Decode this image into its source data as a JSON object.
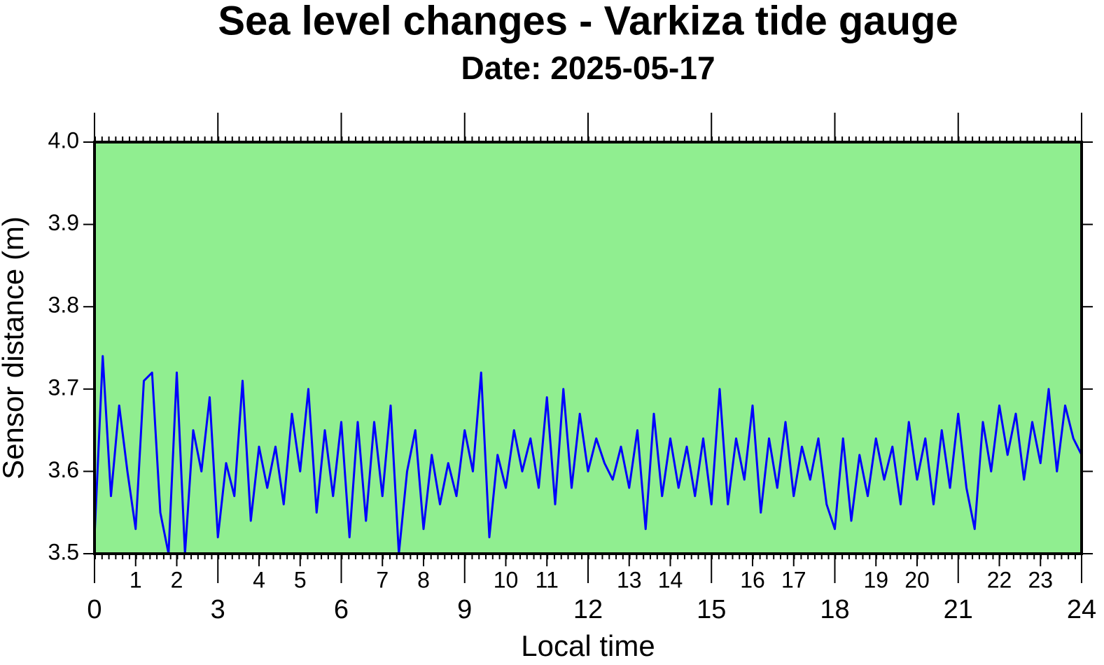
{
  "chart_data": {
    "type": "line",
    "title": "Sea level changes - Varkiza tide gauge",
    "subtitle": "Date: 2025-05-17",
    "x_label": "Local time",
    "y_label": "Sensor distance (m)",
    "xlim": [
      0,
      24
    ],
    "xticks": [
      0,
      3,
      6,
      9,
      12,
      15,
      18,
      21,
      24
    ],
    "xticks_secondary": [
      1,
      2,
      4,
      5,
      7,
      8,
      10,
      11,
      13,
      14,
      16,
      17,
      19,
      20,
      22,
      23
    ],
    "ylim": [
      3.5,
      4.0
    ],
    "yticks": [
      3.5,
      3.6,
      3.7,
      3.8,
      3.9,
      {
        "value": 4.0,
        "label": "4.0"
      }
    ],
    "background": "#90ee90",
    "x": [
      0,
      0.2,
      0.4,
      0.6,
      0.8,
      1,
      1.2,
      1.4,
      1.6,
      1.8,
      2,
      2.2,
      2.4,
      2.6,
      2.8,
      3,
      3.2,
      3.4,
      3.6,
      3.8,
      4,
      4.2,
      4.4,
      4.6,
      4.8,
      5,
      5.2,
      5.4,
      5.6,
      5.8,
      6,
      6.2,
      6.4,
      6.6,
      6.8,
      7,
      7.2,
      7.4,
      7.6,
      7.8,
      8,
      8.2,
      8.4,
      8.6,
      8.8,
      9,
      9.2,
      9.4,
      9.6,
      9.8,
      10,
      10.2,
      10.4,
      10.6,
      10.8,
      11,
      11.2,
      11.4,
      11.6,
      11.8,
      12,
      12.2,
      12.4,
      12.6,
      12.8,
      13,
      13.2,
      13.4,
      13.6,
      13.8,
      14,
      14.2,
      14.4,
      14.6,
      14.8,
      15,
      15.2,
      15.4,
      15.6,
      15.8,
      16,
      16.2,
      16.4,
      16.6,
      16.8,
      17,
      17.2,
      17.4,
      17.6,
      17.8,
      18,
      18.2,
      18.4,
      18.6,
      18.8,
      19,
      19.2,
      19.4,
      19.6,
      19.8,
      20,
      20.2,
      20.4,
      20.6,
      20.8,
      21,
      21.2,
      21.4,
      21.6,
      21.8,
      22,
      22.2,
      22.4,
      22.6,
      22.8,
      23,
      23.2,
      23.4,
      23.6,
      23.8,
      24
    ],
    "series": [
      {
        "color": "#0000ff",
        "values": [
          3.52,
          3.74,
          3.57,
          3.68,
          3.6,
          3.53,
          3.71,
          3.72,
          3.55,
          3.5,
          3.72,
          3.5,
          3.65,
          3.6,
          3.69,
          3.52,
          3.61,
          3.57,
          3.71,
          3.54,
          3.63,
          3.58,
          3.63,
          3.56,
          3.67,
          3.6,
          3.7,
          3.55,
          3.65,
          3.57,
          3.66,
          3.52,
          3.66,
          3.54,
          3.66,
          3.57,
          3.68,
          3.5,
          3.6,
          3.65,
          3.53,
          3.62,
          3.56,
          3.61,
          3.57,
          3.65,
          3.6,
          3.72,
          3.52,
          3.62,
          3.58,
          3.65,
          3.6,
          3.64,
          3.58,
          3.69,
          3.56,
          3.7,
          3.58,
          3.67,
          3.6,
          3.64,
          3.61,
          3.59,
          3.63,
          3.58,
          3.65,
          3.53,
          3.67,
          3.57,
          3.64,
          3.58,
          3.63,
          3.57,
          3.64,
          3.56,
          3.7,
          3.56,
          3.64,
          3.59,
          3.68,
          3.55,
          3.64,
          3.58,
          3.66,
          3.57,
          3.63,
          3.59,
          3.64,
          3.56,
          3.53,
          3.64,
          3.54,
          3.62,
          3.57,
          3.64,
          3.59,
          3.63,
          3.56,
          3.66,
          3.59,
          3.64,
          3.56,
          3.65,
          3.58,
          3.67,
          3.58,
          3.53,
          3.66,
          3.6,
          3.68,
          3.62,
          3.67,
          3.59,
          3.66,
          3.61,
          3.7,
          3.6,
          3.68,
          3.64,
          3.62
        ]
      }
    ]
  }
}
